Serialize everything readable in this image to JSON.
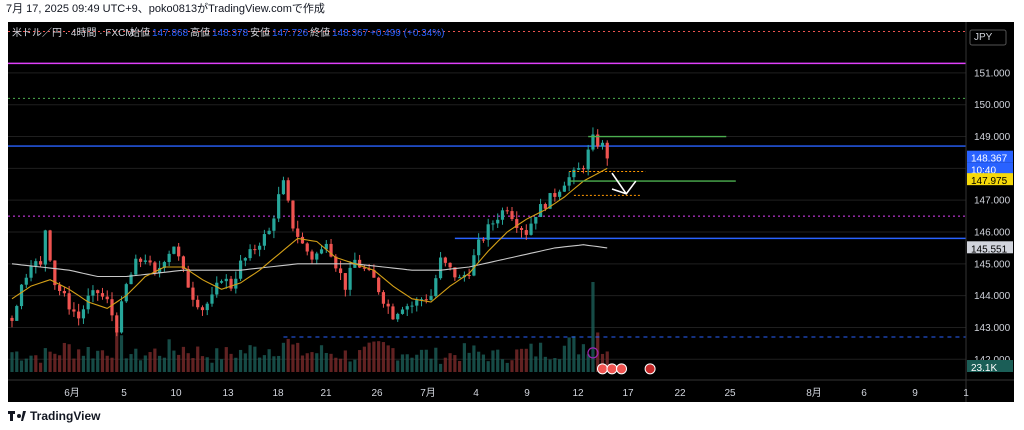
{
  "header": {
    "text": "7月 17, 2025 09:49 UTC+9、poko0813がTradingView.comで作成"
  },
  "footer": {
    "brand": "TradingView"
  },
  "legend": {
    "symbol": "米ドル／円 · 4時間 · FXCM",
    "o_label": "始値",
    "o": "147.868",
    "h_label": "高値",
    "h": "148.378",
    "l_label": "安値",
    "l": "147.726",
    "c_label": "終値",
    "c": "148.367",
    "chg": "+0.499 (+0.34%)"
  },
  "currency": "JPY",
  "colors": {
    "up": "#26a69a",
    "down": "#ef5350",
    "ma_slow": "#c9c9c9",
    "ma_fast": "#d4a017",
    "hline_blue": "#2962ff",
    "hline_magenta": "#e040fb",
    "green_zone": "#4caf50"
  },
  "badges": {
    "price": "148.367",
    "countdown": "10:40",
    "yellow": "147.975",
    "gray": "145.551",
    "volume": "23.1K"
  },
  "chart_data": {
    "type": "candlestick",
    "title": "米ドル／円 · 4時間 · FXCM",
    "y_ticks": [
      151.0,
      150.0,
      149.0,
      148.0,
      147.0,
      146.0,
      145.0,
      144.0,
      143.0,
      142.0
    ],
    "y_tick_labels": [
      "151.000",
      "150.000",
      "149.000",
      "148.000",
      "147.000",
      "146.000",
      "145.000",
      "144.000",
      "143.000",
      "142.000"
    ],
    "ylim": [
      141.6,
      152.6
    ],
    "x_ticks": [
      "6月",
      "5",
      "10",
      "13",
      "18",
      "21",
      "26",
      "7月",
      "4",
      "9",
      "12",
      "17",
      "22",
      "25",
      "8月",
      "6",
      "9",
      "1"
    ],
    "close_path": [
      [
        0,
        143.3
      ],
      [
        2,
        144.3
      ],
      [
        4,
        145.1
      ],
      [
        6,
        144.9
      ],
      [
        7,
        146.1
      ],
      [
        9,
        144.4
      ],
      [
        12,
        143.7
      ],
      [
        14,
        143.3
      ],
      [
        16,
        143.9
      ],
      [
        18,
        144.1
      ],
      [
        20,
        143.8
      ],
      [
        22,
        143.0
      ],
      [
        24,
        144.3
      ],
      [
        26,
        145.0
      ],
      [
        28,
        145.2
      ],
      [
        30,
        144.6
      ],
      [
        32,
        145.2
      ],
      [
        34,
        145.6
      ],
      [
        36,
        144.7
      ],
      [
        38,
        144.0
      ],
      [
        40,
        143.6
      ],
      [
        42,
        143.9
      ],
      [
        44,
        144.6
      ],
      [
        46,
        144.3
      ],
      [
        48,
        145.0
      ],
      [
        50,
        145.3
      ],
      [
        52,
        145.7
      ],
      [
        54,
        146.0
      ],
      [
        56,
        147.1
      ],
      [
        57,
        147.5
      ],
      [
        59,
        146.2
      ],
      [
        61,
        145.6
      ],
      [
        63,
        145.2
      ],
      [
        65,
        145.4
      ],
      [
        66,
        145.8
      ],
      [
        68,
        145.0
      ],
      [
        70,
        144.3
      ],
      [
        72,
        145.1
      ],
      [
        74,
        144.8
      ],
      [
        76,
        144.5
      ],
      [
        78,
        143.9
      ],
      [
        80,
        143.4
      ],
      [
        82,
        143.7
      ],
      [
        84,
        143.7
      ],
      [
        86,
        143.9
      ],
      [
        88,
        144.0
      ],
      [
        90,
        145.1
      ],
      [
        92,
        144.8
      ],
      [
        94,
        144.5
      ],
      [
        96,
        144.8
      ],
      [
        98,
        145.6
      ],
      [
        100,
        146.1
      ],
      [
        102,
        146.5
      ],
      [
        104,
        146.8
      ],
      [
        106,
        146.3
      ],
      [
        108,
        146.0
      ],
      [
        110,
        146.6
      ],
      [
        112,
        146.9
      ],
      [
        114,
        147.2
      ],
      [
        116,
        147.6
      ],
      [
        118,
        147.8
      ],
      [
        120,
        148.1
      ],
      [
        122,
        148.9
      ],
      [
        124,
        148.7
      ],
      [
        125,
        148.4
      ]
    ],
    "slow_ma": [
      [
        0,
        145.0
      ],
      [
        6,
        144.9
      ],
      [
        12,
        144.8
      ],
      [
        18,
        144.6
      ],
      [
        24,
        144.6
      ],
      [
        30,
        144.7
      ],
      [
        36,
        144.8
      ],
      [
        42,
        144.8
      ],
      [
        48,
        144.8
      ],
      [
        54,
        144.9
      ],
      [
        60,
        145.0
      ],
      [
        66,
        145.0
      ],
      [
        72,
        145.0
      ],
      [
        78,
        144.9
      ],
      [
        84,
        144.8
      ],
      [
        90,
        144.8
      ],
      [
        96,
        144.9
      ],
      [
        102,
        145.1
      ],
      [
        108,
        145.3
      ],
      [
        114,
        145.5
      ],
      [
        120,
        145.6
      ],
      [
        125,
        145.5
      ]
    ],
    "fast_ma": [
      [
        0,
        143.9
      ],
      [
        4,
        144.3
      ],
      [
        8,
        144.5
      ],
      [
        12,
        144.2
      ],
      [
        16,
        143.8
      ],
      [
        20,
        143.6
      ],
      [
        24,
        144.0
      ],
      [
        28,
        144.6
      ],
      [
        32,
        144.9
      ],
      [
        36,
        144.9
      ],
      [
        40,
        144.5
      ],
      [
        44,
        144.2
      ],
      [
        48,
        144.4
      ],
      [
        52,
        144.8
      ],
      [
        56,
        145.3
      ],
      [
        60,
        145.8
      ],
      [
        64,
        145.7
      ],
      [
        68,
        145.2
      ],
      [
        72,
        145.0
      ],
      [
        76,
        144.8
      ],
      [
        80,
        144.3
      ],
      [
        84,
        143.9
      ],
      [
        88,
        143.8
      ],
      [
        92,
        144.3
      ],
      [
        96,
        144.7
      ],
      [
        100,
        145.4
      ],
      [
        104,
        146.0
      ],
      [
        108,
        146.4
      ],
      [
        112,
        146.7
      ],
      [
        116,
        147.1
      ],
      [
        120,
        147.6
      ],
      [
        125,
        148.0
      ]
    ],
    "volume_path": [
      [
        0,
        0.5
      ],
      [
        6,
        0.4
      ],
      [
        12,
        0.6
      ],
      [
        18,
        0.5
      ],
      [
        22,
        0.7
      ],
      [
        26,
        0.4
      ],
      [
        30,
        0.5
      ],
      [
        36,
        0.6
      ],
      [
        42,
        0.4
      ],
      [
        48,
        0.5
      ],
      [
        54,
        0.6
      ],
      [
        57,
        0.8
      ],
      [
        60,
        0.5
      ],
      [
        66,
        0.5
      ],
      [
        72,
        0.4
      ],
      [
        78,
        0.6
      ],
      [
        84,
        0.5
      ],
      [
        90,
        0.4
      ],
      [
        96,
        0.5
      ],
      [
        102,
        0.4
      ],
      [
        108,
        0.5
      ],
      [
        114,
        0.6
      ],
      [
        120,
        0.7
      ],
      [
        123,
        1.0
      ],
      [
        125,
        0.6
      ]
    ],
    "hlines": [
      {
        "price": 152.3,
        "style": "dotted",
        "color": "#ef5350"
      },
      {
        "price": 151.3,
        "style": "solid",
        "color": "#e040fb"
      },
      {
        "price": 150.2,
        "style": "dotted",
        "color": "#4caf50"
      },
      {
        "price": 148.7,
        "style": "solid",
        "color": "#2962ff"
      },
      {
        "price": 146.5,
        "style": "dotted",
        "color": "#e040fb"
      },
      {
        "price": 145.8,
        "style": "solid",
        "color": "#2962ff"
      },
      {
        "price": 142.7,
        "style": "dashed",
        "color": "#2962ff"
      }
    ]
  }
}
